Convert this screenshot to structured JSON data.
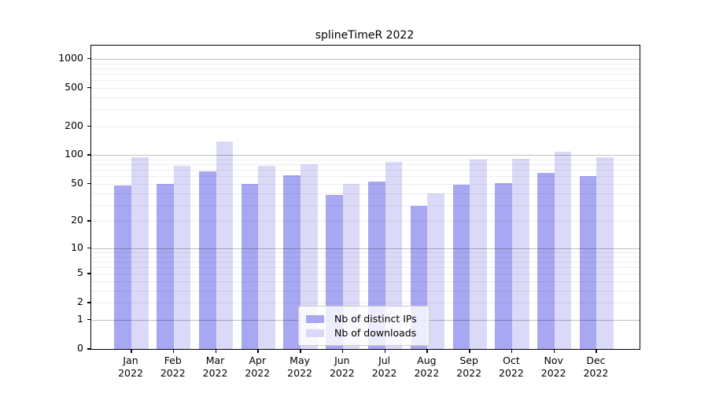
{
  "chart_data": {
    "type": "bar",
    "title": "splineTimeR 2022",
    "categories": [
      "Jan 2022",
      "Feb 2022",
      "Mar 2022",
      "Apr 2022",
      "May 2022",
      "Jun 2022",
      "Jul 2022",
      "Aug 2022",
      "Sep 2022",
      "Oct 2022",
      "Nov 2022",
      "Dec 2022"
    ],
    "series": [
      {
        "name": "Nb of distinct IPs",
        "color": "#a7a7f2",
        "values": [
          48,
          50,
          68,
          50,
          62,
          38,
          53,
          29,
          49,
          51,
          65,
          61
        ]
      },
      {
        "name": "Nb of downloads",
        "color": "#dadaf8",
        "values": [
          95,
          78,
          139,
          78,
          81,
          50,
          85,
          40,
          90,
          92,
          109,
          95
        ]
      }
    ],
    "xlabel": "",
    "ylabel": "",
    "y_axis": {
      "scale": "log1p",
      "tick_labels": [
        "0",
        "1",
        "2",
        "5",
        "10",
        "20",
        "50",
        "100",
        "200",
        "500",
        "1000"
      ],
      "ylim_top": 1373
    },
    "grid": "on",
    "legend": {
      "position": "inside-bottom-center"
    }
  },
  "colors": {
    "major_grid": "rgba(0,0,0,0.25)",
    "minor_grid": "rgba(0,0,0,0.07)",
    "spine": "#000000"
  }
}
